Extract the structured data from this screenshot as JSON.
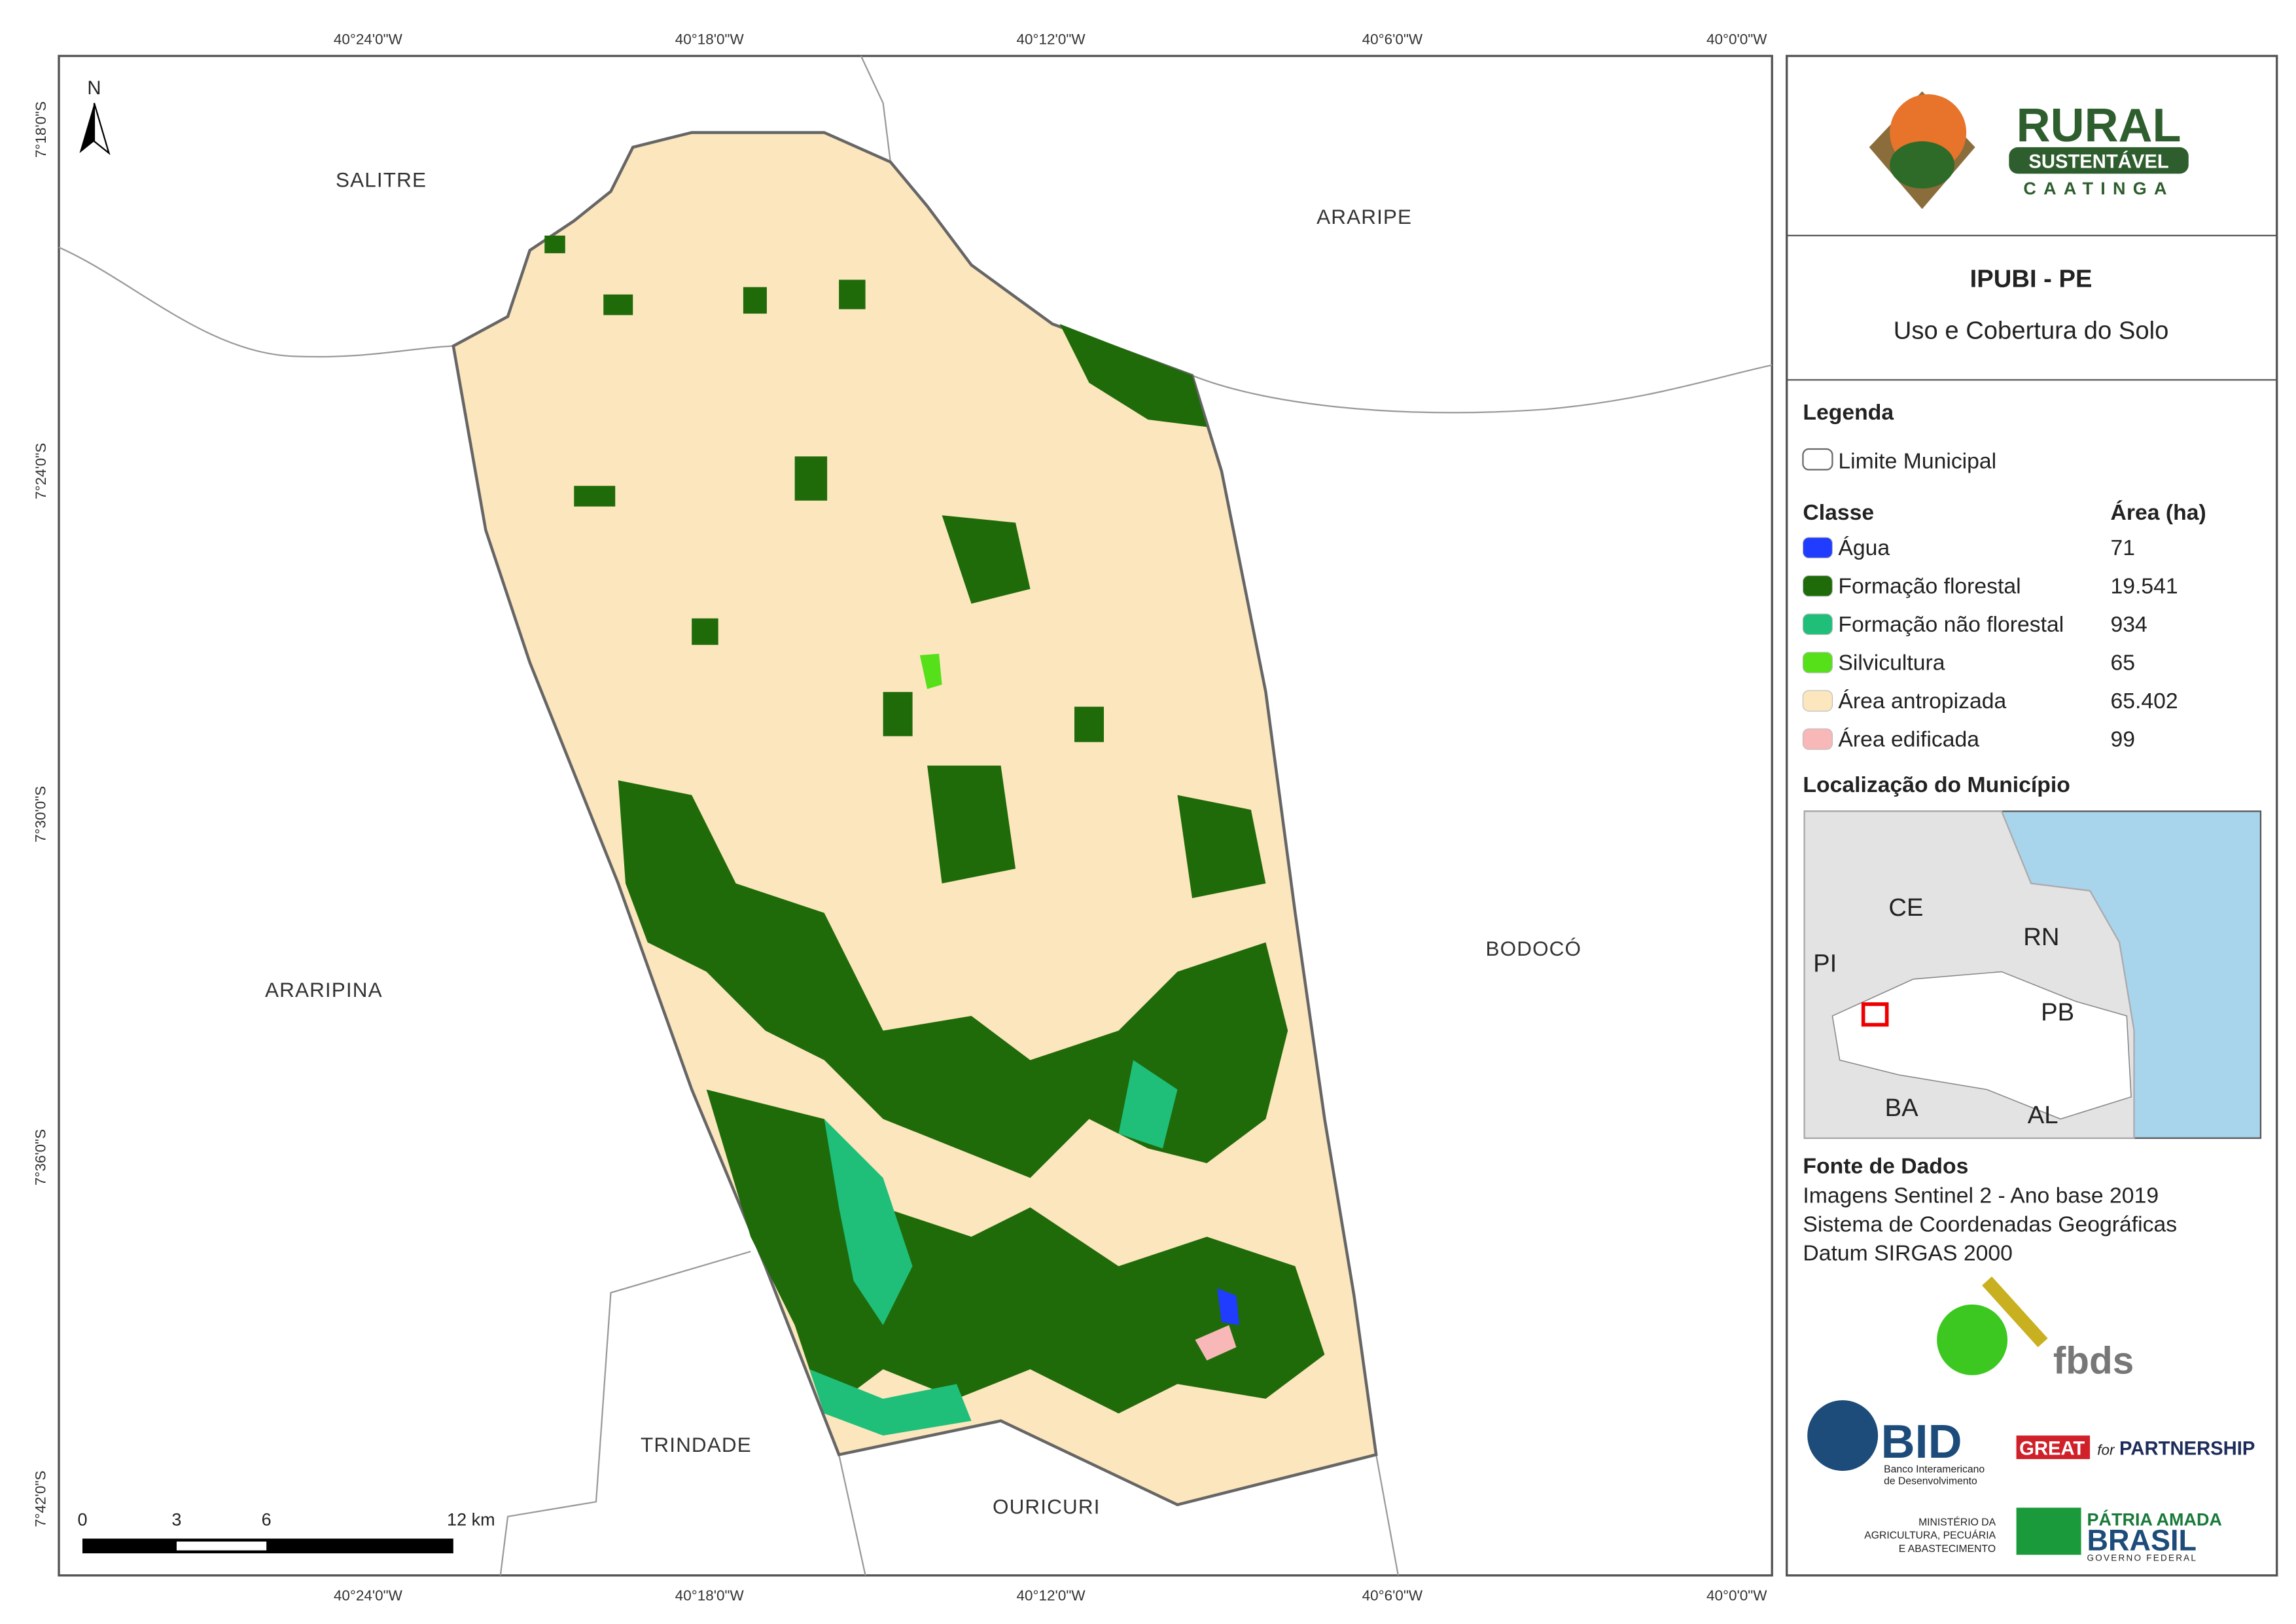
{
  "map": {
    "top_ticks": [
      "40°24'0\"W",
      "40°18'0\"W",
      "40°12'0\"W",
      "40°6'0\"W",
      "40°0'0\"W"
    ],
    "bottom_ticks": [
      "40°24'0\"W",
      "40°18'0\"W",
      "40°12'0\"W",
      "40°6'0\"W",
      "40°0'0\"W"
    ],
    "left_ticks": [
      "7°18'0\"S",
      "7°24'0\"S",
      "7°30'0\"S",
      "7°36'0\"S",
      "7°42'0\"S"
    ],
    "north": "N",
    "places": [
      "SALITRE",
      "ARARIPE",
      "BODOCÓ",
      "ARARIPINA",
      "TRINDADE",
      "OURICURI"
    ],
    "scale_bar": [
      "0",
      "3",
      "6",
      "12 km"
    ]
  },
  "panel": {
    "logo": {
      "rural": "RURAL",
      "sustentavel": "SUSTENTÁVEL",
      "caatinga": "CAATINGA"
    },
    "title": "IPUBI - PE",
    "subtitle": "Uso e Cobertura do Solo",
    "legend_title": "Legenda",
    "boundary": "Limite Municipal",
    "class_header": "Classe",
    "area_header": "Área (ha)",
    "classes": [
      {
        "name": "Água",
        "area": "71",
        "color": "#1f3cff"
      },
      {
        "name": "Formação florestal",
        "area": "19.541",
        "color": "#1f6b0a"
      },
      {
        "name": "Formação não florestal",
        "area": "934",
        "color": "#1fbf7a"
      },
      {
        "name": "Silvicultura",
        "area": "65",
        "color": "#55e01a"
      },
      {
        "name": "Área antropizada",
        "area": "65.402",
        "color": "#fce6bd"
      },
      {
        "name": "Área edificada",
        "area": "99",
        "color": "#f9b8b8"
      }
    ],
    "location_title": "Localização do Município",
    "inset_labels": [
      "CE",
      "RN",
      "PI",
      "PB",
      "BA",
      "AL"
    ],
    "sources_title": "Fonte de Dados",
    "sources": [
      "Imagens Sentinel 2 - Ano base 2019",
      "Sistema de Coordenadas Geográficas",
      "Datum SIRGAS 2000"
    ],
    "logos": {
      "fbds": "fbds",
      "bid": "BID",
      "bid_sub": [
        "Banco Interamericano",
        "de Desenvolvimento"
      ],
      "great": "GREAT",
      "great_for": "for",
      "great_partnership": "PARTNERSHIP",
      "ministry": [
        "MINISTÉRIO DA",
        "AGRICULTURA, PECUÁRIA",
        "E ABASTECIMENTO"
      ],
      "patria": "PÁTRIA AMADA",
      "brasil": "BRASIL",
      "governo": "GOVERNO FEDERAL"
    }
  }
}
